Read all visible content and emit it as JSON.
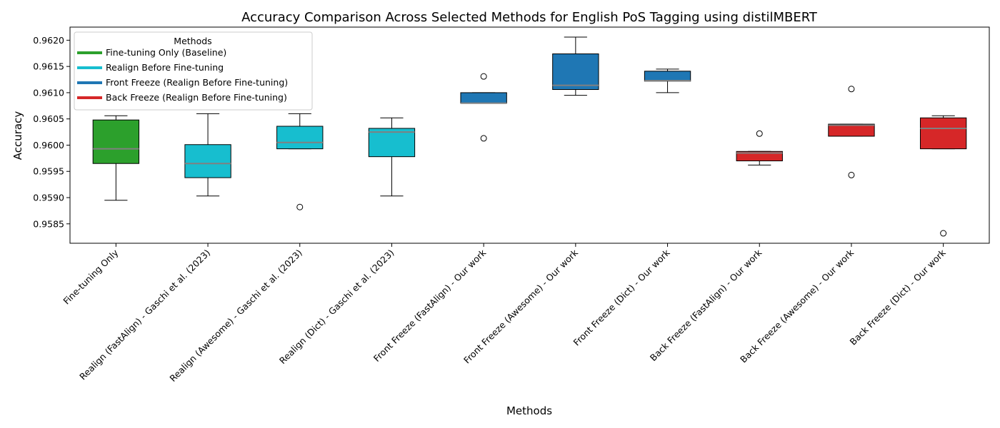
{
  "chart_data": {
    "type": "box",
    "title": "Accuracy Comparison Across Selected Methods for English PoS Tagging using distilMBERT",
    "xlabel": "Methods",
    "ylabel": "Accuracy",
    "ylim": [
      0.95813,
      0.96225
    ],
    "yticks": [
      "0.9585",
      "0.9590",
      "0.9595",
      "0.9600",
      "0.9605",
      "0.9610",
      "0.9615",
      "0.9620"
    ],
    "ytick_values": [
      0.9585,
      0.959,
      0.9595,
      0.96,
      0.9605,
      0.961,
      0.9615,
      0.962
    ],
    "grid": false,
    "legend": {
      "title": "Methods",
      "position": "top-left",
      "entries": [
        {
          "label": "Fine-tuning Only (Baseline)",
          "color": "#2ca02c"
        },
        {
          "label": "Realign Before Fine-tuning",
          "color": "#17becf"
        },
        {
          "label": "Front Freeze (Realign Before Fine-tuning)",
          "color": "#1f77b4"
        },
        {
          "label": "Back Freeze (Realign Before Fine-tuning)",
          "color": "#d62728"
        }
      ]
    },
    "median_color": "#808080",
    "categories": [
      {
        "label": "Fine-tuning Only",
        "color": "#2ca02c",
        "whisker_low": 0.95895,
        "q1": 0.95965,
        "median": 0.95993,
        "q3": 0.96048,
        "whisker_high": 0.96056,
        "outliers": []
      },
      {
        "label": "Realign (FastAlign) - Gaschi et al. (2023)",
        "color": "#17becf",
        "whisker_low": 0.95903,
        "q1": 0.95938,
        "median": 0.95965,
        "q3": 0.96001,
        "whisker_high": 0.9606,
        "outliers": []
      },
      {
        "label": "Realign (Awesome) - Gaschi et al. (2023)",
        "color": "#17becf",
        "whisker_low": 0.95993,
        "q1": 0.95993,
        "median": 0.96005,
        "q3": 0.96036,
        "whisker_high": 0.9606,
        "outliers": [
          0.95882
        ]
      },
      {
        "label": "Realign (Dict) - Gaschi et al. (2023)",
        "color": "#17becf",
        "whisker_low": 0.95903,
        "q1": 0.95978,
        "median": 0.96025,
        "q3": 0.96032,
        "whisker_high": 0.96052,
        "outliers": []
      },
      {
        "label": "Front Freeze (FastAlign) - Our work",
        "color": "#1f77b4",
        "whisker_low": 0.9608,
        "q1": 0.9608,
        "median": 0.9608,
        "q3": 0.961,
        "whisker_high": 0.961,
        "outliers": [
          0.96131,
          0.96013
        ]
      },
      {
        "label": "Front Freeze (Awesome) - Our work",
        "color": "#1f77b4",
        "whisker_low": 0.96095,
        "q1": 0.96106,
        "median": 0.96114,
        "q3": 0.96174,
        "whisker_high": 0.96206,
        "outliers": []
      },
      {
        "label": "Front Freeze (Dict) - Our work",
        "color": "#1f77b4",
        "whisker_low": 0.961,
        "q1": 0.96122,
        "median": 0.96123,
        "q3": 0.96141,
        "whisker_high": 0.96145,
        "outliers": []
      },
      {
        "label": "Back Freeze (FastAlign) - Our work",
        "color": "#d62728",
        "whisker_low": 0.95962,
        "q1": 0.9597,
        "median": 0.95985,
        "q3": 0.95988,
        "whisker_high": 0.95988,
        "outliers": [
          0.96022
        ]
      },
      {
        "label": "Back Freeze (Awesome) - Our work",
        "color": "#d62728",
        "whisker_low": 0.96017,
        "q1": 0.96017,
        "median": 0.96038,
        "q3": 0.9604,
        "whisker_high": 0.9604,
        "outliers": [
          0.96107,
          0.95943
        ]
      },
      {
        "label": "Back Freeze (Dict) - Our work",
        "color": "#d62728",
        "whisker_low": 0.95993,
        "q1": 0.95993,
        "median": 0.96032,
        "q3": 0.96052,
        "whisker_high": 0.96056,
        "outliers": [
          0.95832
        ]
      }
    ]
  }
}
